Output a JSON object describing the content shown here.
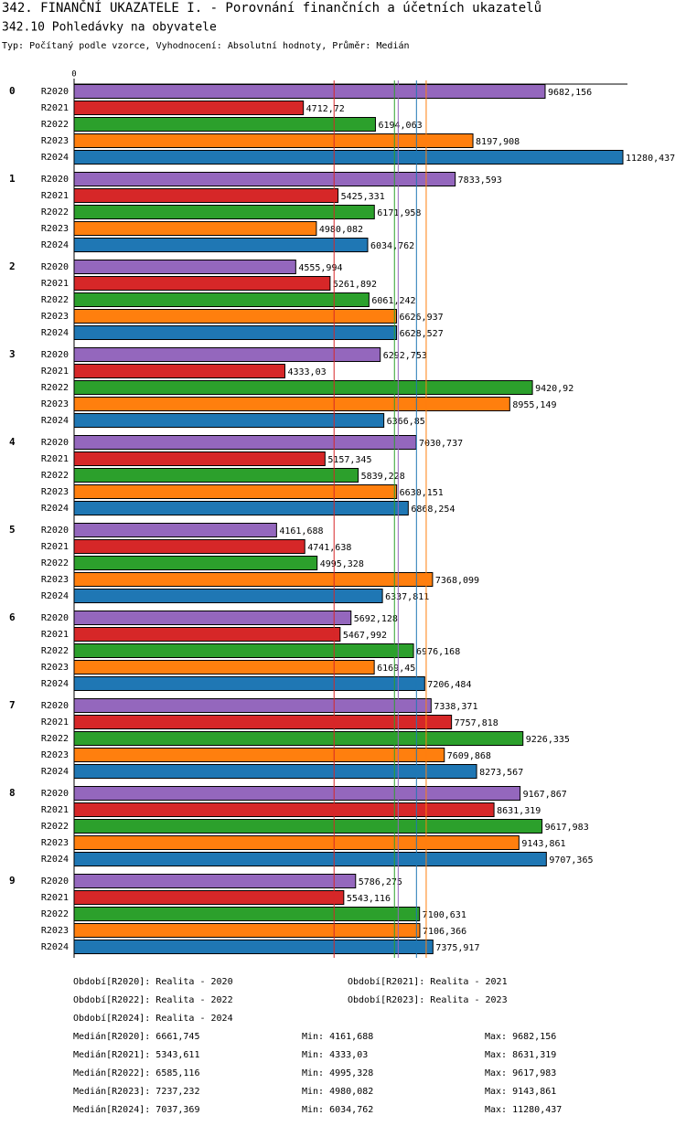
{
  "chart_data": {
    "type": "bar",
    "title": "342. FINANČNÍ UKAZATELE I. - Porovnání finančních a účetních ukazatelů",
    "subtitle": "342.10 Pohledávky na obyvatele",
    "description": "Typ: Počítaný podle vzorce, Vyhodnocení: Absolutní hodnoty, Průměr: Medián",
    "categories": [
      "0",
      "1",
      "2",
      "3",
      "4",
      "5",
      "6",
      "7",
      "8",
      "9"
    ],
    "xlim": [
      0,
      11280.437
    ],
    "xticks": [
      0
    ],
    "series": [
      {
        "name": "R2020",
        "color": "#9467bd",
        "period": "Období[R2020]: Realita - 2020",
        "values": [
          9682.156,
          7833.593,
          4555.994,
          6292.753,
          7030.737,
          4161.688,
          5692.128,
          7338.371,
          9167.867,
          5786.275
        ],
        "value_labels": [
          "9682,156",
          "7833,593",
          "4555,994",
          "6292,753",
          "7030,737",
          "4161,688",
          "5692,128",
          "7338,371",
          "9167,867",
          "5786,275"
        ],
        "median_name": "Medián[R2020]:",
        "median": {
          "value": 6661.745,
          "label": "6661,745"
        },
        "min_name": "Min:",
        "min": "4161,688",
        "max_name": "Max:",
        "max": "9682,156"
      },
      {
        "name": "R2021",
        "color": "#d62728",
        "period": "Období[R2021]: Realita - 2021",
        "values": [
          4712.72,
          5425.331,
          5261.892,
          4333.03,
          5157.345,
          4741.638,
          5467.992,
          7757.818,
          8631.319,
          5543.116
        ],
        "value_labels": [
          "4712,72",
          "5425,331",
          "5261,892",
          "4333,03",
          "5157,345",
          "4741,638",
          "5467,992",
          "7757,818",
          "8631,319",
          "5543,116"
        ],
        "median_name": "Medián[R2021]:",
        "median": {
          "value": 5343.611,
          "label": "5343,611"
        },
        "min_name": "Min:",
        "min": "4333,03",
        "max_name": "Max:",
        "max": "8631,319"
      },
      {
        "name": "R2022",
        "color": "#2ca02c",
        "period": "Období[R2022]: Realita - 2022",
        "values": [
          6194.063,
          6171.958,
          6061.242,
          9420.92,
          5839.228,
          4995.328,
          6976.168,
          9226.335,
          9617.983,
          7100.631
        ],
        "value_labels": [
          "6194,063",
          "6171,958",
          "6061,242",
          "9420,92",
          "5839,228",
          "4995,328",
          "6976,168",
          "9226,335",
          "9617,983",
          "7100,631"
        ],
        "median_name": "Medián[R2022]:",
        "median": {
          "value": 6585.116,
          "label": "6585,116"
        },
        "min_name": "Min:",
        "min": "4995,328",
        "max_name": "Max:",
        "max": "9617,983"
      },
      {
        "name": "R2023",
        "color": "#ff7f0e",
        "period": "Období[R2023]: Realita - 2023",
        "values": [
          8197.908,
          4980.082,
          6626.937,
          8955.149,
          6630.151,
          7368.099,
          6169.45,
          7609.868,
          9143.861,
          7106.366
        ],
        "value_labels": [
          "8197,908",
          "4980,082",
          "6626,937",
          "8955,149",
          "6630,151",
          "7368,099",
          "6169,45",
          "7609,868",
          "9143,861",
          "7106,366"
        ],
        "median_name": "Medián[R2023]:",
        "median": {
          "value": 7237.232,
          "label": "7237,232"
        },
        "min_name": "Min:",
        "min": "4980,082",
        "max_name": "Max:",
        "max": "9143,861"
      },
      {
        "name": "R2024",
        "color": "#1f77b4",
        "period": "Období[R2024]: Realita - 2024",
        "values": [
          11280.437,
          6034.762,
          6628.527,
          6366.85,
          6868.254,
          6337.811,
          7206.484,
          8273.567,
          9707.365,
          7375.917
        ],
        "value_labels": [
          "11280,437",
          "6034,762",
          "6628,527",
          "6366,85",
          "6868,254",
          "6337,811",
          "7206,484",
          "8273,567",
          "9707,365",
          "7375,917"
        ],
        "median_name": "Medián[R2024]:",
        "median": {
          "value": 7037.369,
          "label": "7037,369"
        },
        "min_name": "Min:",
        "min": "6034,762",
        "max_name": "Max:",
        "max": "11280,437"
      }
    ]
  }
}
